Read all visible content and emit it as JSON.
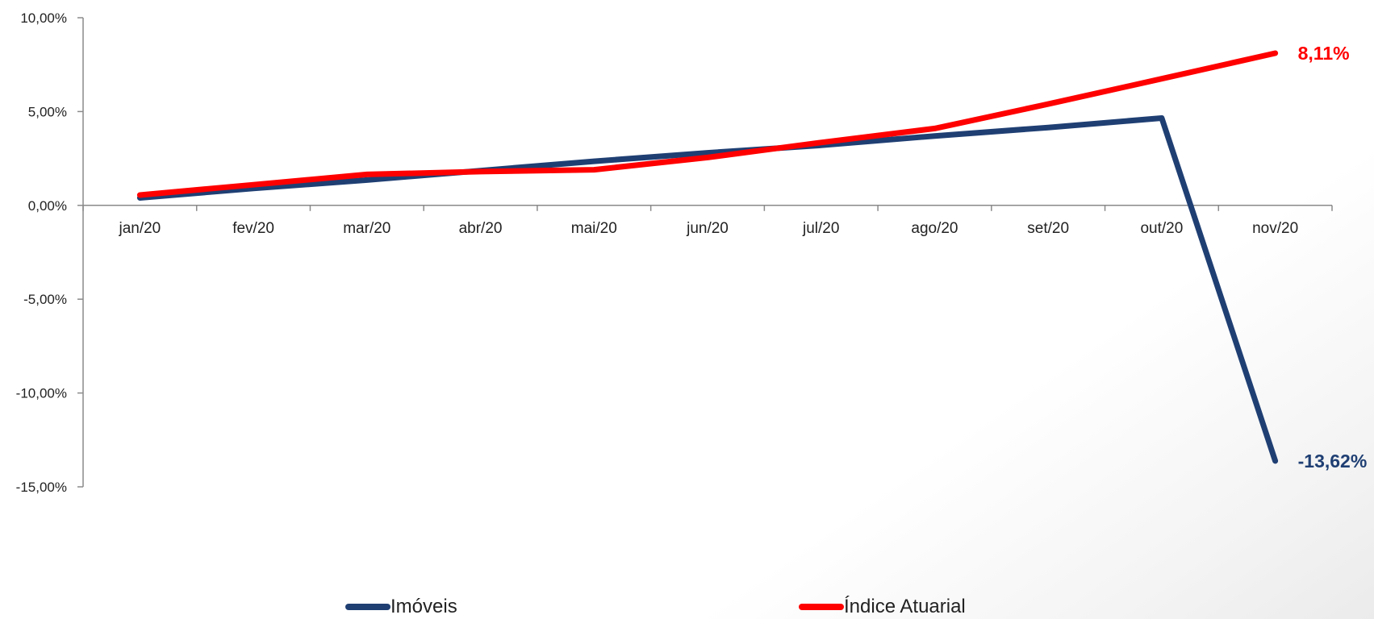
{
  "chart_data": {
    "type": "line",
    "categories": [
      "jan/20",
      "fev/20",
      "mar/20",
      "abr/20",
      "mai/20",
      "jun/20",
      "jul/20",
      "ago/20",
      "set/20",
      "out/20",
      "nov/20"
    ],
    "series": [
      {
        "name": "Imóveis",
        "color": "#1F3F73",
        "values": [
          0.4,
          0.9,
          1.35,
          1.85,
          2.35,
          2.8,
          3.2,
          3.7,
          4.15,
          4.65,
          -13.62
        ]
      },
      {
        "name": "Índice Atuarial",
        "color": "#FF0000",
        "values": [
          0.55,
          1.1,
          1.65,
          1.8,
          1.9,
          2.55,
          3.35,
          4.1,
          5.4,
          6.75,
          8.11
        ]
      }
    ],
    "y_ticks": [
      "10,00%",
      "5,00%",
      "0,00%",
      "-5,00%",
      "-10,00%",
      "-15,00%"
    ],
    "ylim": [
      -15,
      10
    ],
    "end_labels": [
      "-13,62%",
      "8,11%"
    ],
    "legend_position": "bottom",
    "grid": false
  }
}
